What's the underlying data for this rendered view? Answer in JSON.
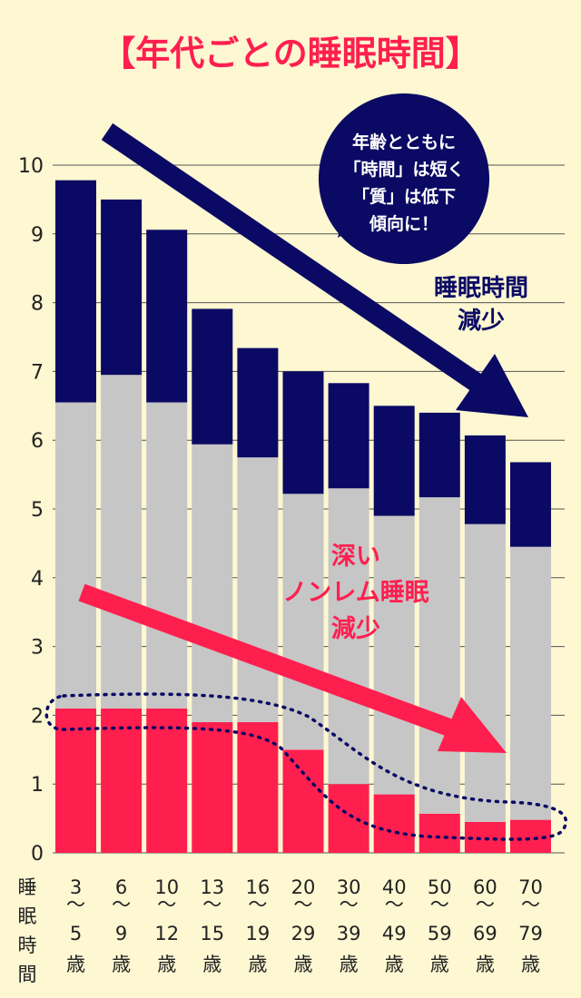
{
  "chart_data": {
    "type": "bar",
    "title": "【年代ごとの睡眠時間】",
    "ylabel": "睡眠時間",
    "ylim": [
      0,
      10
    ],
    "yticks": [
      "0",
      "1",
      "2",
      "3",
      "4",
      "5",
      "6",
      "7",
      "8",
      "9",
      "10"
    ],
    "categories": [
      [
        "3",
        "〜",
        "5",
        "歳"
      ],
      [
        "6",
        "〜",
        "9",
        "歳"
      ],
      [
        "10",
        "〜",
        "12",
        "歳"
      ],
      [
        "13",
        "〜",
        "15",
        "歳"
      ],
      [
        "16",
        "〜",
        "19",
        "歳"
      ],
      [
        "20",
        "〜",
        "29",
        "歳"
      ],
      [
        "30",
        "〜",
        "39",
        "歳"
      ],
      [
        "40",
        "〜",
        "49",
        "歳"
      ],
      [
        "50",
        "〜",
        "59",
        "歳"
      ],
      [
        "60",
        "〜",
        "69",
        "歳"
      ],
      [
        "70",
        "〜",
        "79",
        "歳"
      ]
    ],
    "stacked": true,
    "series": [
      {
        "values": [
          2.1,
          2.1,
          2.1,
          1.9,
          1.9,
          1.5,
          1.0,
          0.85,
          0.57,
          0.45,
          0.48
        ],
        "color": "#ff1f4f"
      },
      {
        "values": [
          4.45,
          4.85,
          4.45,
          4.04,
          3.85,
          3.72,
          4.3,
          4.05,
          4.6,
          4.33,
          3.97
        ],
        "color": "#c6c6c6"
      },
      {
        "values": [
          3.23,
          2.55,
          2.51,
          1.97,
          1.59,
          1.78,
          1.53,
          1.6,
          1.23,
          1.29,
          1.23
        ],
        "color": "#0a0a64"
      }
    ],
    "annotations": {
      "bubble": [
        "年齢とともに",
        "「時間」は短く",
        "「質」は低下",
        "傾向に！"
      ],
      "sleep_decrease": [
        "睡眠時間",
        "減少"
      ],
      "deep_sleep_decrease": [
        "深い",
        "ノンレム睡眠",
        "減少"
      ]
    },
    "colors": {
      "navy": "#0a0a64",
      "gray": "#c6c6c6",
      "pink": "#ff1f4f",
      "background": "#fdf7d2",
      "grid": "#555555",
      "dotted": "#0a0a64"
    }
  }
}
